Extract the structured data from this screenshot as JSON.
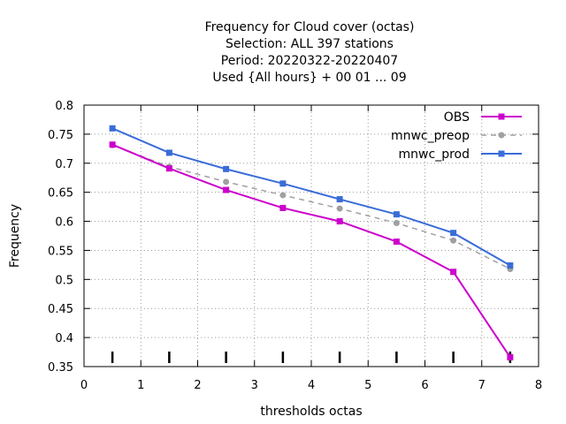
{
  "chart_data": {
    "type": "line",
    "title": [
      "Frequency  for Cloud cover (octas)",
      "Selection: ALL    397 stations",
      "Period: 20220322-20220407",
      "Used {All hours} + 00 01 ... 09"
    ],
    "xlabel": "thresholds octas",
    "ylabel": "Frequency",
    "xlim": [
      0,
      8
    ],
    "ylim": [
      0.35,
      0.8
    ],
    "xticks": [
      0,
      1,
      2,
      3,
      4,
      5,
      6,
      7,
      8
    ],
    "xtick_labels": [
      "0",
      "1",
      "2",
      "3",
      "4",
      "5",
      "6",
      "7",
      "8"
    ],
    "yticks": [
      0.35,
      0.4,
      0.45,
      0.5,
      0.55,
      0.6,
      0.65,
      0.7,
      0.75,
      0.8
    ],
    "ytick_labels": [
      "0.35",
      "0.4",
      "0.45",
      "0.5",
      "0.55",
      "0.6",
      "0.65",
      "0.7",
      "0.75",
      "0.8"
    ],
    "grid": true,
    "legend_position": "top-right",
    "threshold_markers": [
      0.5,
      1.5,
      2.5,
      3.5,
      4.5,
      5.5,
      6.5,
      7.5
    ],
    "x": [
      0.5,
      1.5,
      2.5,
      3.5,
      4.5,
      5.5,
      6.5,
      7.5
    ],
    "series": [
      {
        "name": "OBS",
        "color": "#cc00cc",
        "dash": "solid",
        "values": [
          0.732,
          0.691,
          0.654,
          0.623,
          0.6,
          0.565,
          0.513,
          0.366
        ]
      },
      {
        "name": "mnwc_preop",
        "color": "#a0a0a0",
        "dash": "dashed",
        "values": [
          0.731,
          0.694,
          0.668,
          0.645,
          0.622,
          0.597,
          0.567,
          0.518
        ]
      },
      {
        "name": "mnwc_prod",
        "color": "#3a6cd8",
        "dash": "solid",
        "values": [
          0.76,
          0.718,
          0.69,
          0.665,
          0.638,
          0.612,
          0.58,
          0.524
        ]
      }
    ]
  }
}
